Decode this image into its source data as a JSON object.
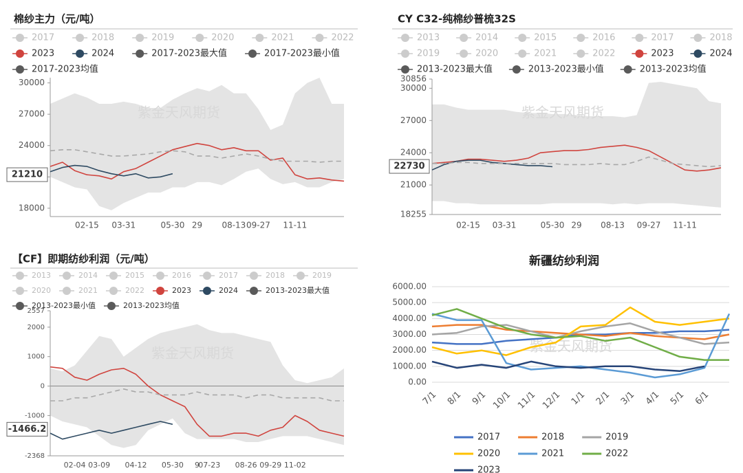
{
  "chart_data": [
    {
      "type": "line",
      "title": "棉纱主力（元/吨）",
      "watermark": "紫金天风期货",
      "legend_marker": "circle",
      "categories": [
        null,
        null,
        null,
        "02-15",
        null,
        null,
        "03-31",
        null,
        null,
        null,
        "05-30",
        null,
        "29",
        null,
        null,
        "08-13",
        null,
        "09-27",
        null,
        null,
        "11-11",
        null,
        null,
        null,
        null
      ],
      "ylim": [
        17200,
        30500
      ],
      "yticks": [
        18000,
        21000,
        24000,
        27000,
        30000
      ],
      "grid": false,
      "band_fill": "#e4e4e4",
      "cursor": 21210,
      "series": [
        {
          "name": "2017",
          "color": "#cccccc",
          "inactive": true
        },
        {
          "name": "2018",
          "color": "#cccccc",
          "inactive": true
        },
        {
          "name": "2019",
          "color": "#cccccc",
          "inactive": true
        },
        {
          "name": "2020",
          "color": "#cccccc",
          "inactive": true
        },
        {
          "name": "2021",
          "color": "#cccccc",
          "inactive": true
        },
        {
          "name": "2022",
          "color": "#cccccc",
          "inactive": true
        },
        {
          "name": "2023",
          "color": "#d0443e",
          "values": [
            22000,
            22400,
            21600,
            21200,
            21100,
            20800,
            21500,
            21800,
            22400,
            23000,
            23600,
            23900,
            24200,
            24000,
            23600,
            23800,
            23500,
            23500,
            22600,
            22800,
            21200,
            20800,
            20900,
            20700,
            20600
          ]
        },
        {
          "name": "2024",
          "color": "#2e4a62",
          "values": [
            21500,
            21900,
            22100,
            22000,
            21600,
            21300,
            21100,
            21300,
            20900,
            21000,
            21300,
            null,
            null,
            null,
            null,
            null,
            null,
            null,
            null,
            null,
            null,
            null,
            null,
            null,
            null
          ]
        },
        {
          "name": "2017-2023最大值",
          "color": "#5a5a5a",
          "style": "band_upper",
          "values": [
            28000,
            28500,
            29000,
            28600,
            28000,
            28000,
            28200,
            28000,
            27600,
            27600,
            28400,
            29000,
            29500,
            29200,
            29800,
            29000,
            29000,
            27500,
            25500,
            26000,
            29000,
            30000,
            30500,
            28000,
            28000
          ]
        },
        {
          "name": "2017-2023最小值",
          "color": "#5a5a5a",
          "style": "band_lower",
          "values": [
            21000,
            20500,
            20000,
            19800,
            18200,
            17800,
            18500,
            19000,
            19500,
            19500,
            20000,
            20000,
            20500,
            20500,
            20200,
            20800,
            21500,
            21800,
            20800,
            20300,
            20500,
            20000,
            20000,
            20500,
            20800
          ]
        },
        {
          "name": "2017-2023均值",
          "color": "#5a5a5a",
          "line_color": "#a8a8a8",
          "style": "dashed",
          "values": [
            23500,
            23600,
            23600,
            23400,
            23200,
            23000,
            23000,
            23100,
            23200,
            23400,
            23500,
            23400,
            23000,
            23000,
            22800,
            23000,
            23200,
            23000,
            22700,
            22500,
            22500,
            22500,
            22400,
            22500,
            22500
          ]
        }
      ]
    },
    {
      "type": "line",
      "title": "CY C32-纯棉纱普梳32S",
      "watermark": "紫金天风期货",
      "legend_marker": "circle",
      "categories": [
        null,
        null,
        null,
        "02-15",
        null,
        null,
        "03-31",
        null,
        null,
        null,
        "05-30",
        null,
        "29",
        null,
        null,
        "08-13",
        null,
        null,
        "09-27",
        null,
        null,
        "11-11",
        null,
        null,
        null
      ],
      "ylim": [
        18255,
        30856
      ],
      "yticks": [
        18255,
        21000,
        24000,
        27000,
        30000,
        30856
      ],
      "grid": false,
      "band_fill": "#e4e4e4",
      "cursor": 22730,
      "series": [
        {
          "name": "2013",
          "color": "#cccccc",
          "inactive": true
        },
        {
          "name": "2014",
          "color": "#cccccc",
          "inactive": true
        },
        {
          "name": "2015",
          "color": "#cccccc",
          "inactive": true
        },
        {
          "name": "2016",
          "color": "#cccccc",
          "inactive": true
        },
        {
          "name": "2017",
          "color": "#cccccc",
          "inactive": true
        },
        {
          "name": "2018",
          "color": "#cccccc",
          "inactive": true
        },
        {
          "name": "2019",
          "color": "#cccccc",
          "inactive": true
        },
        {
          "name": "2020",
          "color": "#cccccc",
          "inactive": true
        },
        {
          "name": "2021",
          "color": "#cccccc",
          "inactive": true
        },
        {
          "name": "2022",
          "color": "#cccccc",
          "inactive": true
        },
        {
          "name": "2023",
          "color": "#d0443e",
          "values": [
            23000,
            23100,
            23200,
            23400,
            23400,
            23300,
            23200,
            23300,
            23500,
            24000,
            24100,
            24200,
            24200,
            24300,
            24500,
            24600,
            24700,
            24500,
            24200,
            23600,
            23000,
            22400,
            22300,
            22400,
            22600
          ]
        },
        {
          "name": "2024",
          "color": "#2e4a62",
          "values": [
            22400,
            22900,
            23200,
            23300,
            23300,
            23100,
            23000,
            22900,
            22800,
            22800,
            22700,
            null,
            null,
            null,
            null,
            null,
            null,
            null,
            null,
            null,
            null,
            null,
            null,
            null,
            null
          ]
        },
        {
          "name": "2013-2023最大值",
          "color": "#5a5a5a",
          "style": "band_upper",
          "values": [
            28500,
            28500,
            28200,
            28000,
            28000,
            28000,
            28000,
            27800,
            27700,
            27700,
            27600,
            27600,
            27500,
            27400,
            27400,
            27400,
            27300,
            27500,
            30500,
            30600,
            30400,
            30200,
            30000,
            28800,
            28600
          ]
        },
        {
          "name": "2013-2023最小值",
          "color": "#5a5a5a",
          "style": "band_lower",
          "values": [
            19500,
            19500,
            19300,
            19300,
            19200,
            19200,
            19200,
            19200,
            19200,
            19200,
            19300,
            19300,
            19300,
            19300,
            19300,
            19200,
            19300,
            19200,
            19300,
            19300,
            19300,
            19200,
            19100,
            19000,
            18900
          ]
        },
        {
          "name": "2013-2023均值",
          "color": "#5a5a5a",
          "line_color": "#a8a8a8",
          "style": "dashed",
          "values": [
            23000,
            23000,
            23100,
            23100,
            23000,
            23000,
            23000,
            23000,
            23000,
            23000,
            23000,
            22900,
            22900,
            22900,
            23000,
            22900,
            22900,
            23200,
            23600,
            23300,
            23000,
            22900,
            22800,
            22700,
            22800
          ]
        }
      ]
    },
    {
      "type": "line",
      "title": "【CF】即期纺纱利润（元/吨）",
      "watermark": "紫金天风期货",
      "legend_marker": "circle",
      "categories": [
        null,
        null,
        "02-04",
        null,
        "03-09",
        null,
        null,
        "04-12",
        null,
        null,
        "05-30",
        null,
        "9",
        "07-23",
        null,
        null,
        "08-26",
        null,
        "09-29",
        null,
        "11-02",
        null,
        null,
        null,
        null
      ],
      "ylim": [
        -2368,
        2557
      ],
      "yticks": [
        -2368,
        -1000,
        0,
        1000,
        2000,
        2557
      ],
      "grid": false,
      "zero_line": true,
      "band_fill": "#e4e4e4",
      "cursor": -1466.2,
      "series": [
        {
          "name": "2013",
          "color": "#cccccc",
          "inactive": true
        },
        {
          "name": "2014",
          "color": "#cccccc",
          "inactive": true
        },
        {
          "name": "2015",
          "color": "#cccccc",
          "inactive": true
        },
        {
          "name": "2016",
          "color": "#cccccc",
          "inactive": true
        },
        {
          "name": "2017",
          "color": "#cccccc",
          "inactive": true
        },
        {
          "name": "2018",
          "color": "#cccccc",
          "inactive": true
        },
        {
          "name": "2019",
          "color": "#cccccc",
          "inactive": true
        },
        {
          "name": "2020",
          "color": "#cccccc",
          "inactive": true
        },
        {
          "name": "2021",
          "color": "#cccccc",
          "inactive": true
        },
        {
          "name": "2022",
          "color": "#cccccc",
          "inactive": true
        },
        {
          "name": "2023",
          "color": "#d0443e",
          "values": [
            650,
            600,
            300,
            200,
            400,
            550,
            600,
            400,
            0,
            -300,
            -500,
            -700,
            -1300,
            -1700,
            -1700,
            -1600,
            -1600,
            -1700,
            -1500,
            -1400,
            -1000,
            -1200,
            -1500,
            -1600,
            -1700
          ]
        },
        {
          "name": "2024",
          "color": "#2e4a62",
          "values": [
            -1600,
            -1800,
            -1700,
            -1600,
            -1500,
            -1600,
            -1500,
            -1400,
            -1300,
            -1200,
            -1300,
            null,
            null,
            null,
            null,
            null,
            null,
            null,
            null,
            null,
            null,
            null,
            null,
            null,
            null
          ]
        },
        {
          "name": "2013-2023最大值",
          "color": "#5a5a5a",
          "style": "band_upper",
          "values": [
            600,
            500,
            700,
            1200,
            1700,
            1600,
            1000,
            1300,
            1600,
            1800,
            1900,
            2000,
            2100,
            1900,
            1800,
            1800,
            1700,
            1600,
            1500,
            700,
            200,
            100,
            200,
            300,
            600
          ]
        },
        {
          "name": "2013-2023最小值",
          "color": "#5a5a5a",
          "style": "band_lower",
          "values": [
            -1000,
            -1200,
            -1300,
            -1400,
            -1700,
            -2000,
            -2100,
            -2000,
            -1500,
            -1300,
            -1100,
            -1600,
            -1800,
            -1800,
            -1800,
            -1800,
            -1900,
            -1900,
            -1800,
            -1700,
            -1700,
            -1700,
            -1800,
            -1900,
            -2000
          ]
        },
        {
          "name": "2013-2023均值",
          "color": "#5a5a5a",
          "line_color": "#a8a8a8",
          "style": "dashed",
          "values": [
            -500,
            -500,
            -400,
            -400,
            -300,
            -200,
            -100,
            -200,
            -200,
            -300,
            -300,
            -300,
            -200,
            -300,
            -300,
            -300,
            -400,
            -300,
            -300,
            -400,
            -400,
            -400,
            -400,
            -500,
            -500
          ]
        }
      ]
    },
    {
      "type": "line",
      "title": "新疆纺纱利润",
      "watermark": "紫金天风期货",
      "legend_marker": "line",
      "xlabel_rotation": -45,
      "categories": [
        "7/1",
        "8/1",
        "9/1",
        "10/1",
        "11/1",
        "12/1",
        "1/1",
        "2/1",
        "3/1",
        "4/1",
        "5/1",
        "6/1",
        null
      ],
      "ylim": [
        0,
        6000
      ],
      "grid": true,
      "yticks": [
        {
          "value": 0,
          "label": "0.00"
        },
        {
          "value": 1000,
          "label": "1000.00"
        },
        {
          "value": 2000,
          "label": "2000.00"
        },
        {
          "value": 3000,
          "label": "3000.00"
        },
        {
          "value": 4000,
          "label": "4000.00"
        },
        {
          "value": 5000,
          "label": "5000.00"
        },
        {
          "value": 6000,
          "label": "6000.00"
        }
      ],
      "series": [
        {
          "name": "2017",
          "color": "#4472c4",
          "values": [
            2500,
            2400,
            2400,
            2600,
            2700,
            2800,
            3000,
            3000,
            3100,
            3100,
            3200,
            3200,
            3300
          ]
        },
        {
          "name": "2018",
          "color": "#ed7d31",
          "values": [
            3500,
            3600,
            3600,
            3300,
            3200,
            3100,
            3000,
            2900,
            3100,
            2900,
            2800,
            2700,
            3000
          ]
        },
        {
          "name": "2019",
          "color": "#a5a5a5",
          "values": [
            3000,
            3100,
            3500,
            3600,
            3200,
            2800,
            3200,
            3500,
            3700,
            3200,
            2800,
            2400,
            2500
          ]
        },
        {
          "name": "2020",
          "color": "#ffc000",
          "values": [
            2200,
            1800,
            2000,
            1700,
            2200,
            2500,
            3500,
            3600,
            4700,
            3800,
            3600,
            3800,
            4000
          ]
        },
        {
          "name": "2021",
          "color": "#5b9bd5",
          "values": [
            4300,
            3900,
            3900,
            1200,
            800,
            900,
            1000,
            800,
            600,
            300,
            500,
            900,
            4300
          ]
        },
        {
          "name": "2022",
          "color": "#70ad47",
          "values": [
            4200,
            4600,
            4000,
            3400,
            3000,
            2800,
            2900,
            2600,
            2800,
            2200,
            1600,
            1400,
            1400
          ]
        },
        {
          "name": "2023",
          "color": "#264478",
          "values": [
            1300,
            900,
            1100,
            900,
            1300,
            1000,
            900,
            1000,
            1000,
            800,
            700,
            1000,
            null
          ]
        }
      ]
    }
  ]
}
